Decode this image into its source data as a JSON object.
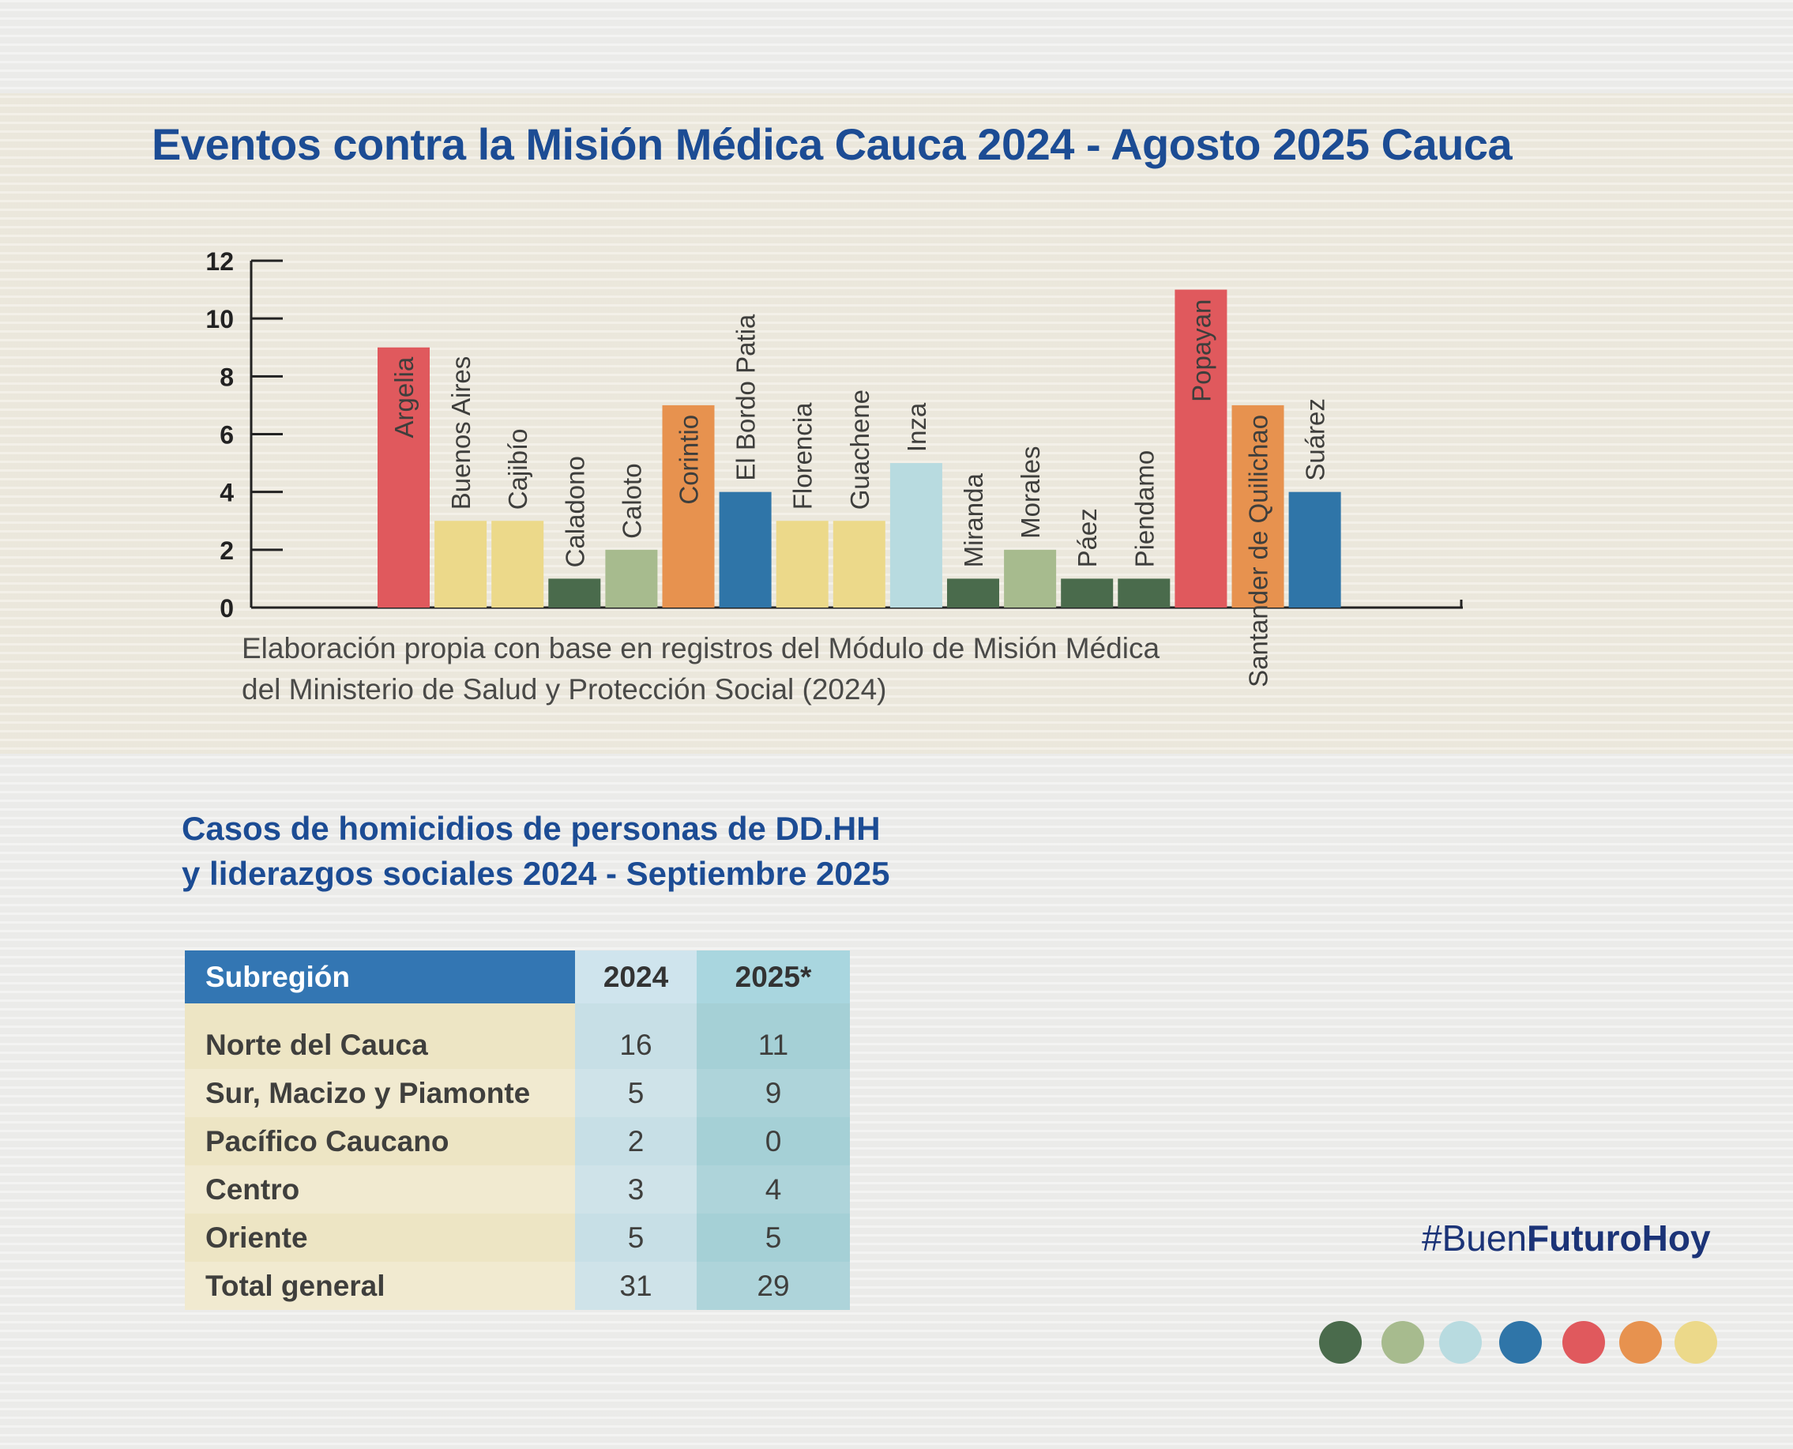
{
  "title": "Eventos contra la Misión Médica Cauca 2024 - Agosto 2025 Cauca",
  "caption": {
    "line1": "Elaboración propia con base en registros del Módulo de Misión Médica",
    "line2": "del Ministerio de Salud y Protección Social (2024)"
  },
  "chart_data": {
    "type": "bar",
    "title": "Eventos contra la Misión Médica Cauca 2024 - Agosto 2025 Cauca",
    "xlabel": "",
    "ylabel": "",
    "ylim": [
      0,
      12
    ],
    "yticks": [
      0,
      2,
      4,
      6,
      8,
      10,
      12
    ],
    "categories": [
      "Argelia",
      "Buenos Aires",
      "Cajibío",
      "Caladono",
      "Caloto",
      "Corintio",
      "El Bordo Patia",
      "Florencia",
      "Guachene",
      "Inza",
      "Miranda",
      "Morales",
      "Páez",
      "Piendamo",
      "Popayan",
      "Santander de Quilichao",
      "Suárez"
    ],
    "values": [
      9,
      3,
      3,
      1,
      2,
      7,
      4,
      3,
      3,
      5,
      1,
      2,
      1,
      1,
      11,
      7,
      4
    ],
    "colors": [
      "#e0595d",
      "#ecd98a",
      "#ecd98a",
      "#4a6b4c",
      "#a7bb8e",
      "#e7924f",
      "#2f75a8",
      "#ecd98a",
      "#ecd98a",
      "#b8dbe0",
      "#4a6b4c",
      "#a7bb8e",
      "#4a6b4c",
      "#4a6b4c",
      "#e0595d",
      "#e7924f",
      "#2f75a8"
    ]
  },
  "table": {
    "title_line1": "Casos de homicidios de personas de DD.HH",
    "title_line2": "y liderazgos sociales 2024 - Septiembre 2025",
    "headers": [
      "Subregión",
      "2024",
      "2025*"
    ],
    "rows": [
      {
        "region": "Norte del Cauca",
        "y2024": "16",
        "y2025": "11"
      },
      {
        "region": "Sur, Macizo y Piamonte",
        "y2024": "5",
        "y2025": "9"
      },
      {
        "region": "Pacífico Caucano",
        "y2024": "2",
        "y2025": "0"
      },
      {
        "region": "Centro",
        "y2024": "3",
        "y2025": "4"
      },
      {
        "region": "Oriente",
        "y2024": "5",
        "y2025": "5"
      },
      {
        "region": "Total general",
        "y2024": "31",
        "y2025": "29"
      }
    ]
  },
  "hashtag": {
    "prefix": "#Buen",
    "bold": "FuturoHoy"
  },
  "palette": [
    "#4a6b4c",
    "#a7bb8e",
    "#b8dbe0",
    "#2f75a8",
    "#e0595d",
    "#e7924f",
    "#ecd98a"
  ]
}
